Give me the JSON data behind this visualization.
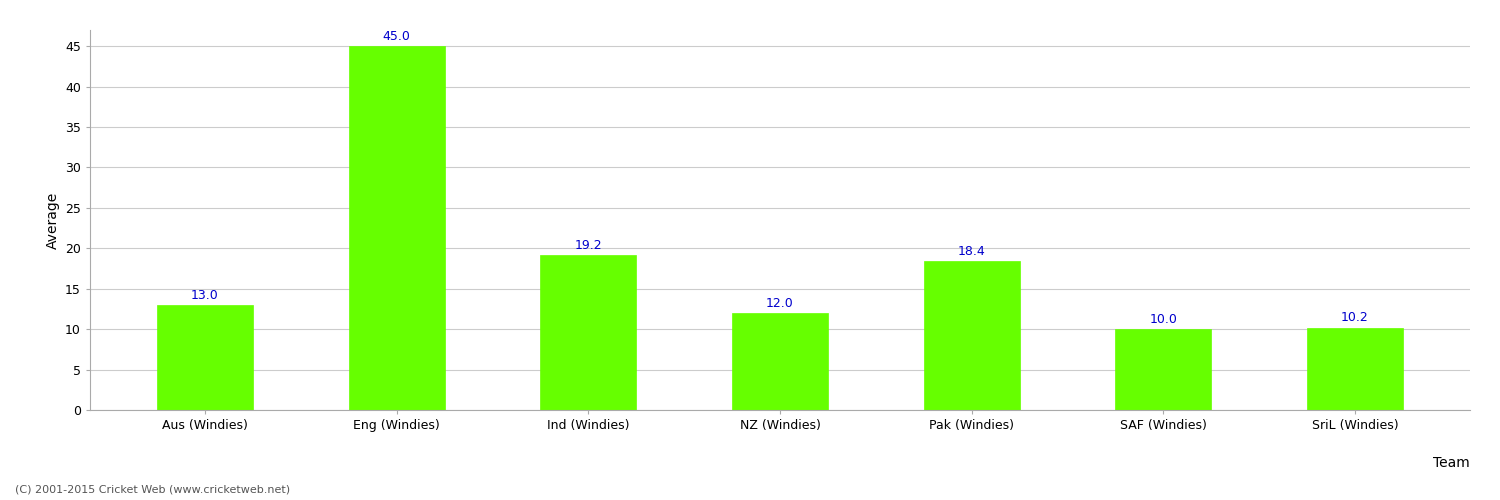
{
  "categories": [
    "Aus (Windies)",
    "Eng (Windies)",
    "Ind (Windies)",
    "NZ (Windies)",
    "Pak (Windies)",
    "SAF (Windies)",
    "SriL (Windies)"
  ],
  "values": [
    13.0,
    45.0,
    19.2,
    12.0,
    18.4,
    10.0,
    10.2
  ],
  "bar_color": "#66ff00",
  "bar_edge_color": "#66ff00",
  "ylabel": "Average",
  "xlabel_right": "Team",
  "ylim": [
    0,
    47
  ],
  "yticks": [
    0,
    5,
    10,
    15,
    20,
    25,
    30,
    35,
    40,
    45
  ],
  "label_color": "#0000cc",
  "label_fontsize": 9,
  "axis_label_fontsize": 10,
  "tick_fontsize": 9,
  "background_color": "#ffffff",
  "grid_color": "#cccccc",
  "footer_text": "(C) 2001-2015 Cricket Web (www.cricketweb.net)",
  "footer_fontsize": 8,
  "footer_color": "#555555"
}
